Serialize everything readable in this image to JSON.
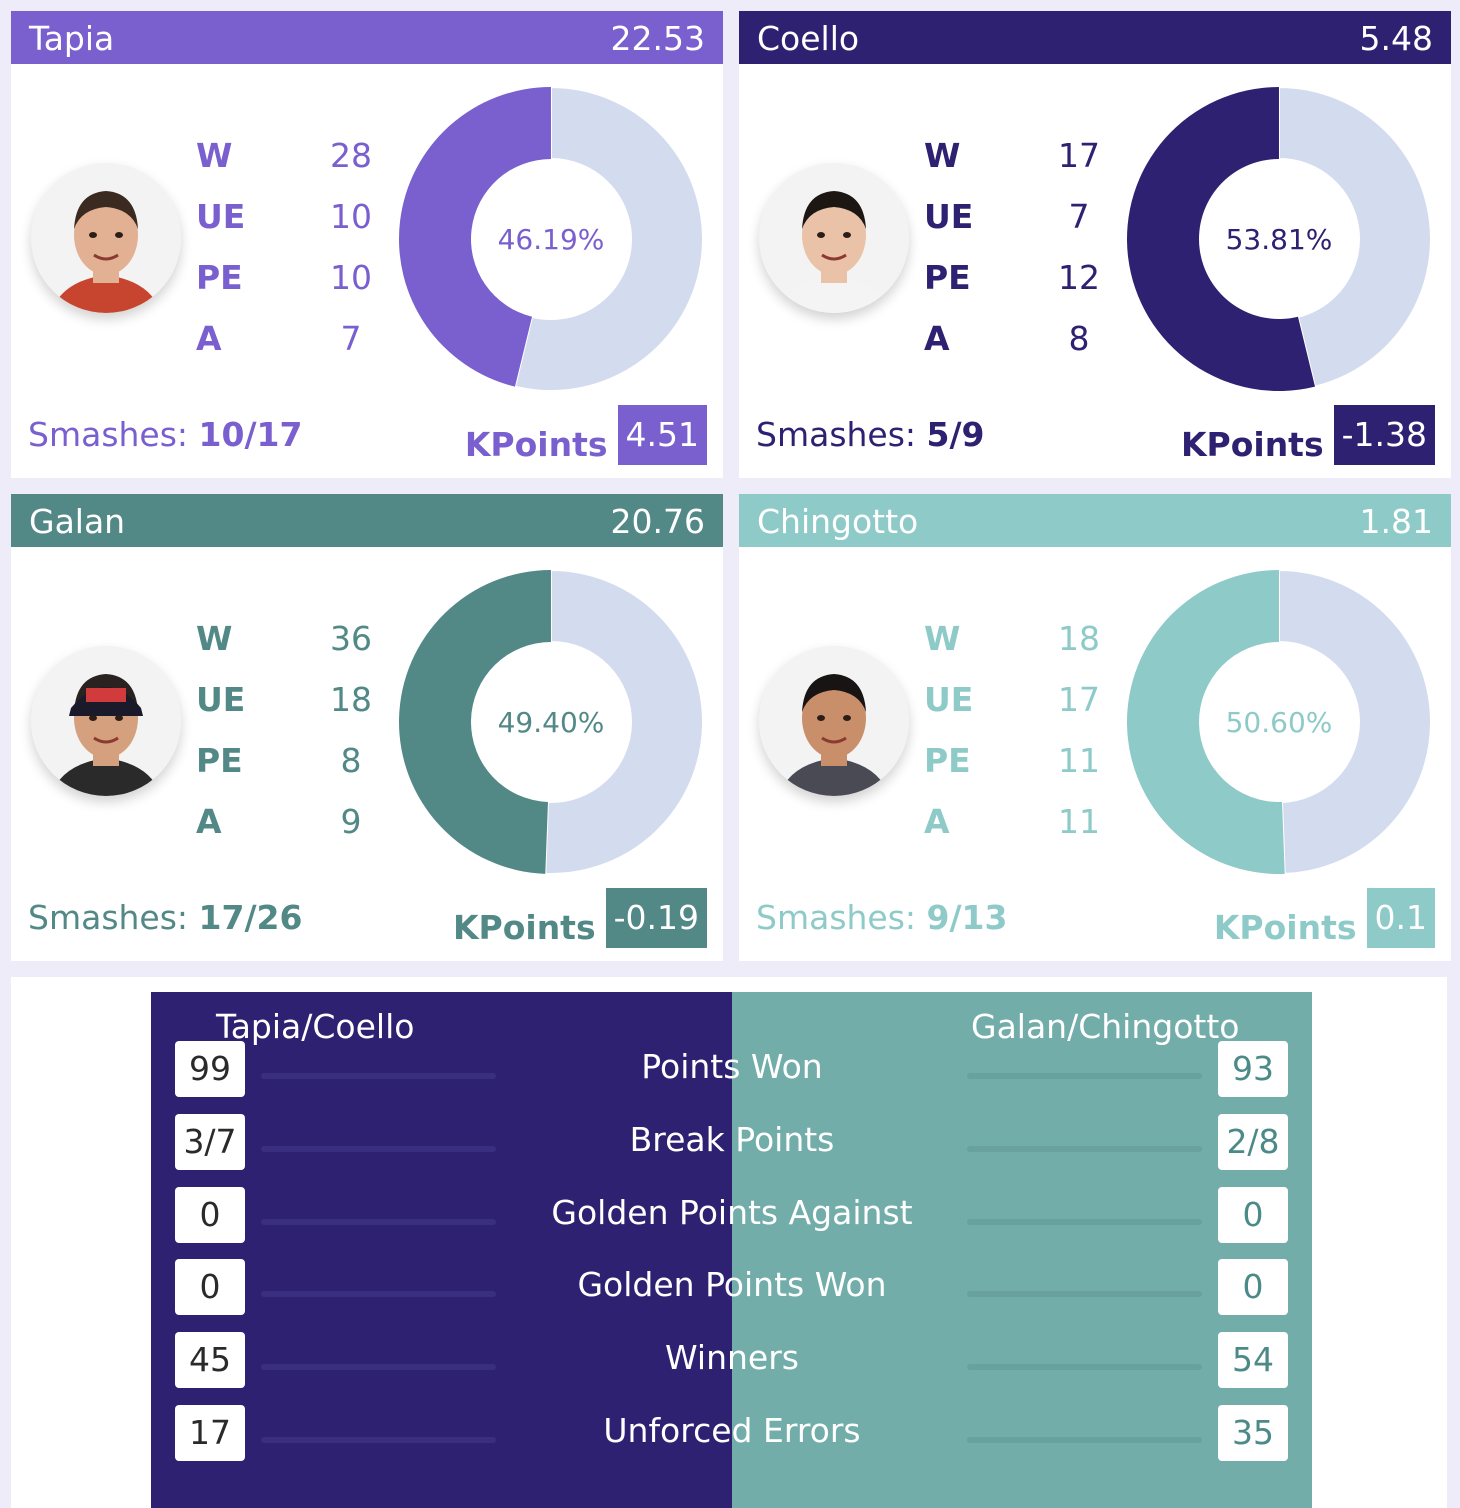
{
  "players": [
    {
      "name": "Tapia",
      "score": "22.53",
      "stats": [
        {
          "label": "W",
          "value": "28"
        },
        {
          "label": "UE",
          "value": "10"
        },
        {
          "label": "PE",
          "value": "10"
        },
        {
          "label": "A",
          "value": "7"
        }
      ],
      "percent_label": "46.19%",
      "percent": 46.19,
      "smashes_label": "Smashes:",
      "smashes": "10/17",
      "kpoints_label": "KPoints",
      "kpoints": "4.51",
      "color": "#7a5fcf",
      "text_color": "#7a5fcf"
    },
    {
      "name": "Coello",
      "score": "5.48",
      "stats": [
        {
          "label": "W",
          "value": "17"
        },
        {
          "label": "UE",
          "value": "7"
        },
        {
          "label": "PE",
          "value": "12"
        },
        {
          "label": "A",
          "value": "8"
        }
      ],
      "percent_label": "53.81%",
      "percent": 53.81,
      "smashes_label": "Smashes:",
      "smashes": "5/9",
      "kpoints_label": "KPoints",
      "kpoints": "-1.38",
      "color": "#2e2172",
      "text_color": "#2e2172"
    },
    {
      "name": "Galan",
      "score": "20.76",
      "stats": [
        {
          "label": "W",
          "value": "36"
        },
        {
          "label": "UE",
          "value": "18"
        },
        {
          "label": "PE",
          "value": "8"
        },
        {
          "label": "A",
          "value": "9"
        }
      ],
      "percent_label": "49.40%",
      "percent": 49.4,
      "smashes_label": "Smashes:",
      "smashes": "17/26",
      "kpoints_label": "KPoints",
      "kpoints": "-0.19",
      "color": "#528987",
      "text_color": "#528987"
    },
    {
      "name": "Chingotto",
      "score": "1.81",
      "stats": [
        {
          "label": "W",
          "value": "18"
        },
        {
          "label": "UE",
          "value": "17"
        },
        {
          "label": "PE",
          "value": "11"
        },
        {
          "label": "A",
          "value": "11"
        }
      ],
      "percent_label": "50.60%",
      "percent": 50.6,
      "smashes_label": "Smashes:",
      "smashes": "9/13",
      "kpoints_label": "KPoints",
      "kpoints": "0.1",
      "color": "#8ecac8",
      "text_color": "#8ecac8"
    }
  ],
  "donut_rest_color": "#d3dbef",
  "comparison": {
    "team_left": "Tapia/Coello",
    "team_right": "Galan/Chingotto",
    "left_color": "#2e2172",
    "right_color": "#72adaa",
    "rows": [
      {
        "label": "Points Won",
        "left": "99",
        "right": "93"
      },
      {
        "label": "Break Points",
        "left": "3/7",
        "right": "2/8"
      },
      {
        "label": "Golden Points Against",
        "left": "0",
        "right": "0"
      },
      {
        "label": "Golden Points Won",
        "left": "0",
        "right": "0"
      },
      {
        "label": "Winners",
        "left": "45",
        "right": "54"
      },
      {
        "label": "Unforced Errors",
        "left": "17",
        "right": "35"
      }
    ]
  }
}
